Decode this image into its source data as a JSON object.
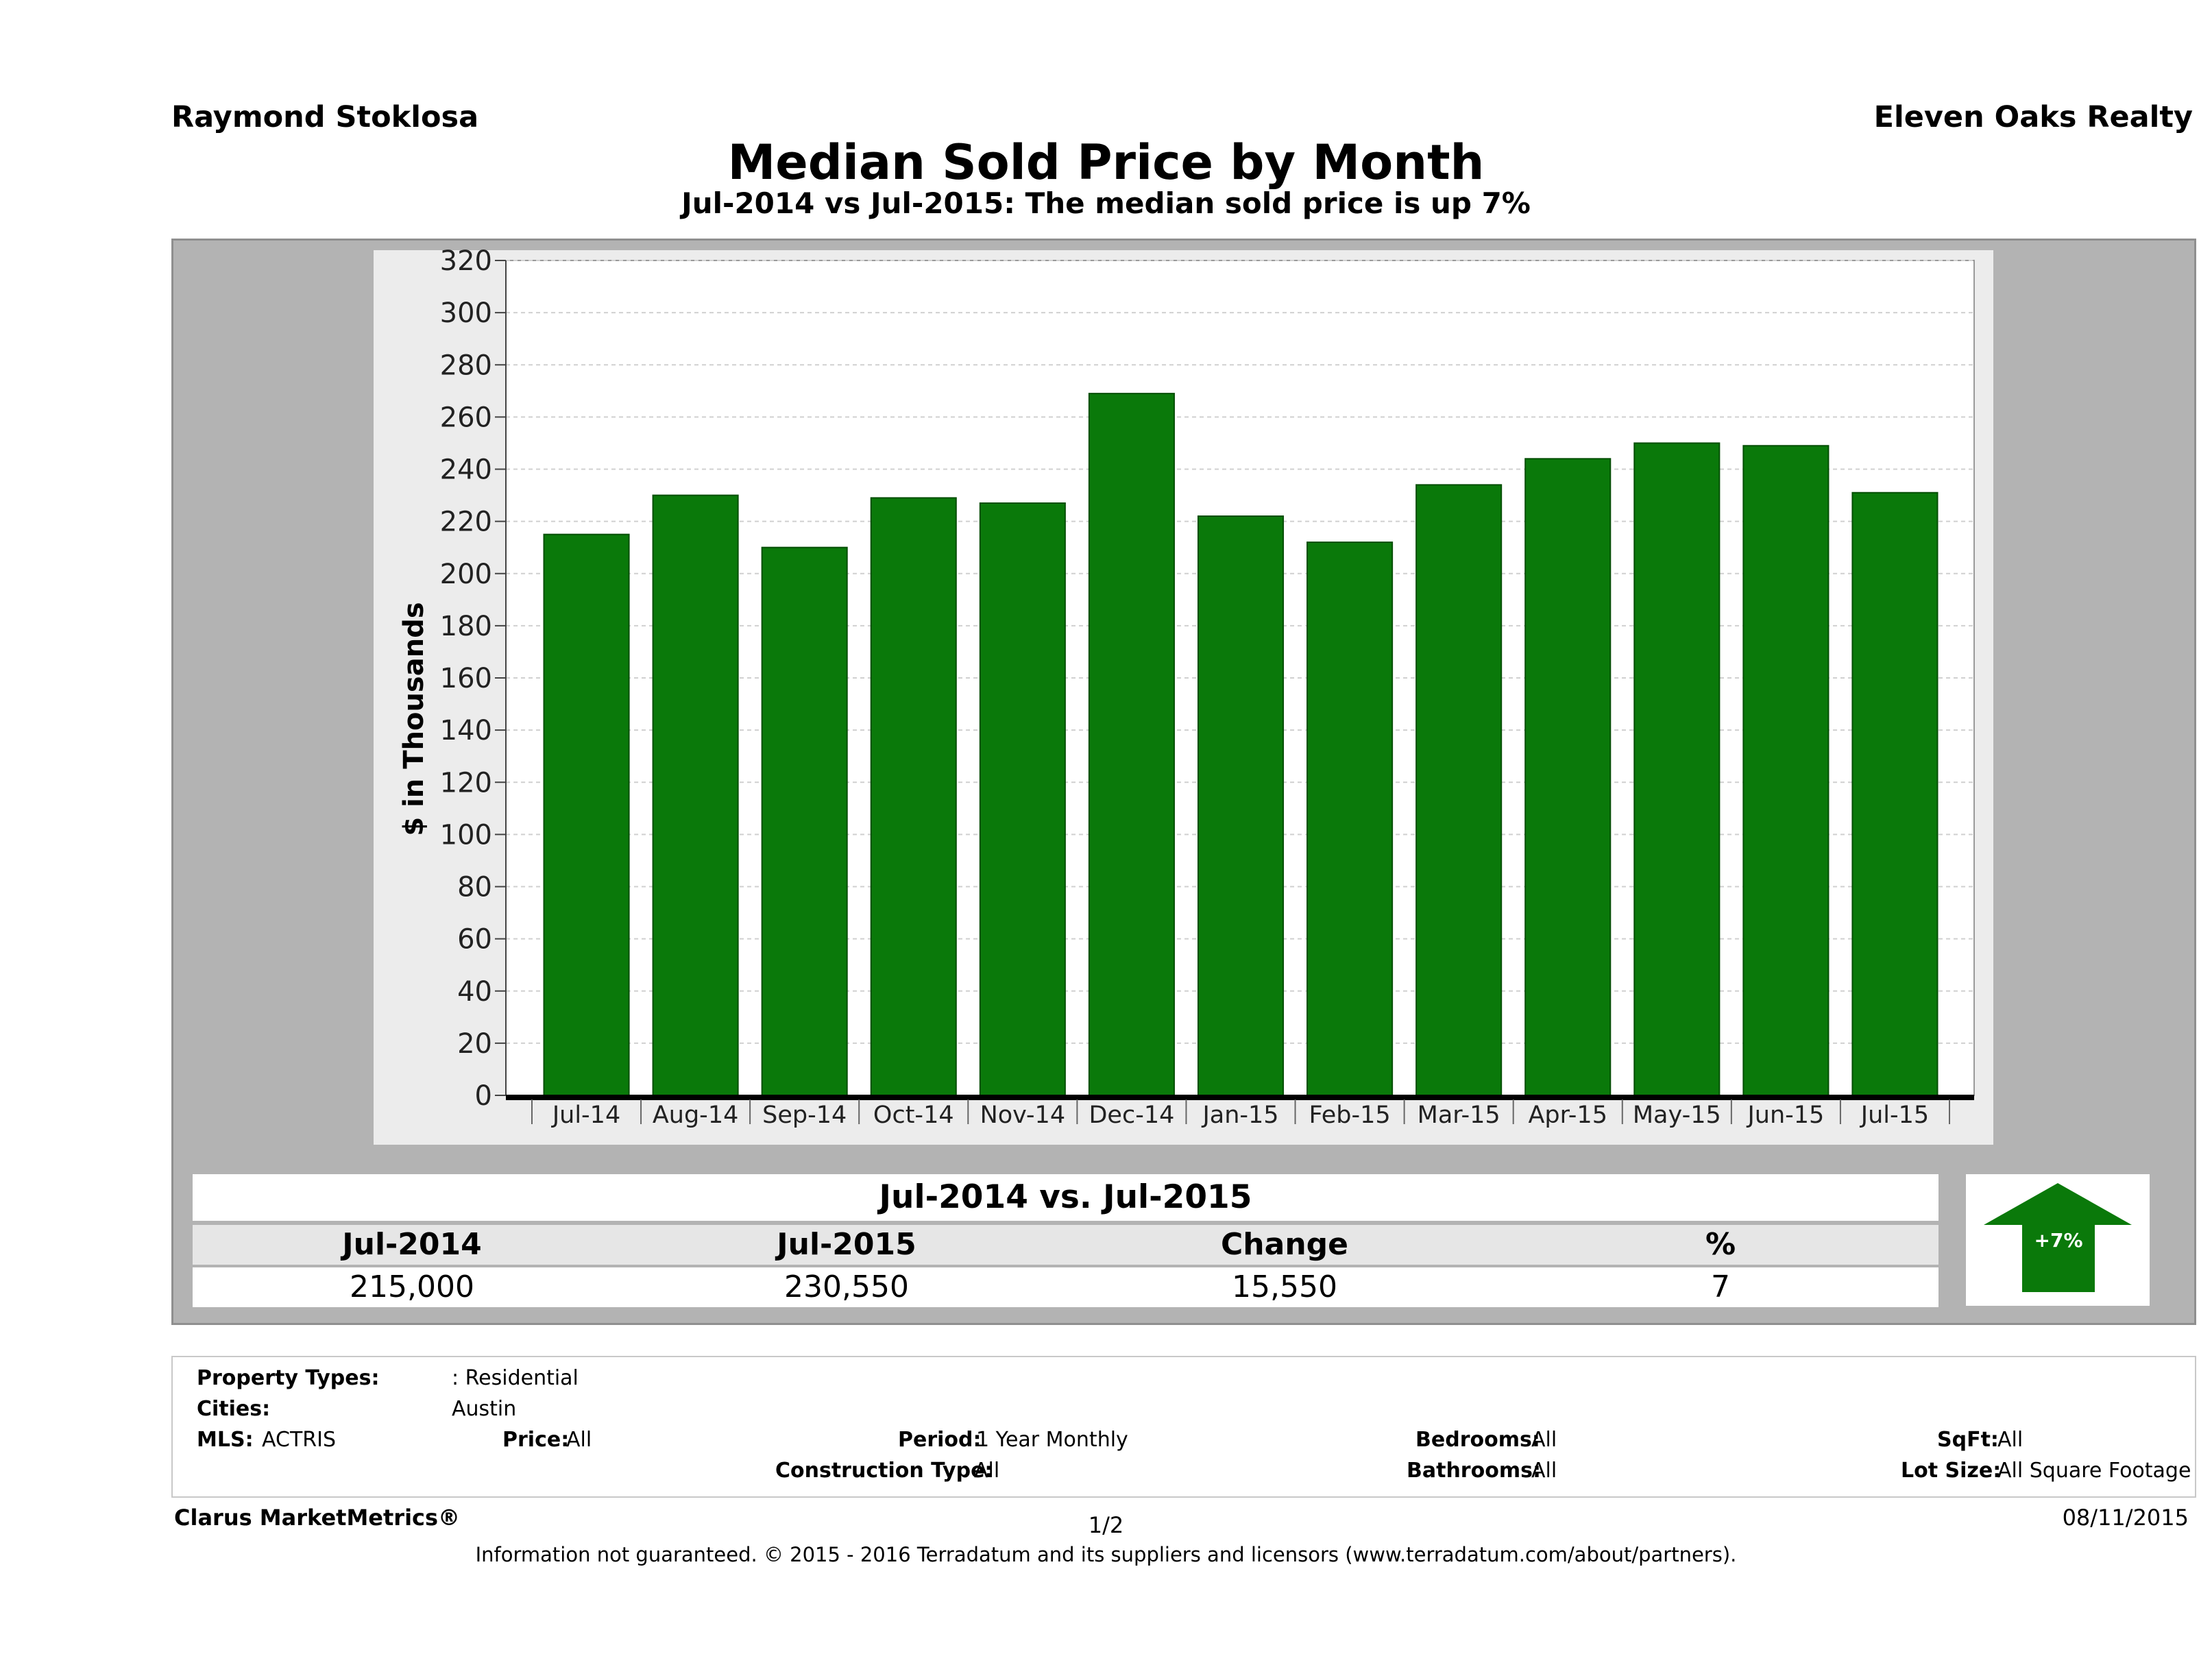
{
  "header": {
    "agent": "Raymond Stoklosa",
    "company": "Eleven Oaks Realty"
  },
  "chart_data": {
    "type": "bar",
    "title": "Median Sold Price by Month",
    "subtitle": "Jul-2014 vs Jul-2015: The median sold price is up 7%",
    "xlabel": "",
    "ylabel": "$ in Thousands",
    "ylim": [
      0,
      320
    ],
    "yticks": [
      0,
      20,
      40,
      60,
      80,
      100,
      120,
      140,
      160,
      180,
      200,
      220,
      240,
      260,
      280,
      300,
      320
    ],
    "categories": [
      "Jul-14",
      "Aug-14",
      "Sep-14",
      "Oct-14",
      "Nov-14",
      "Dec-14",
      "Jan-15",
      "Feb-15",
      "Mar-15",
      "Apr-15",
      "May-15",
      "Jun-15",
      "Jul-15"
    ],
    "values": [
      215,
      230,
      210,
      229,
      227,
      269,
      222,
      212,
      234,
      244,
      250,
      249,
      231
    ],
    "bar_color": "#0a790a",
    "grid": true
  },
  "summary": {
    "heading": "Jul-2014 vs. Jul-2015",
    "col1_label": "Jul-2014",
    "col2_label": "Jul-2015",
    "col3_label": "Change",
    "col4_label": "%",
    "col1_value": "215,000",
    "col2_value": "230,550",
    "col3_value": "15,550",
    "col4_value": "7",
    "arrow_label": "+7%",
    "arrow_color": "#0a790a",
    "arrow_direction": "up"
  },
  "info": {
    "property_types_label": "Property Types:",
    "property_types_value": ": Residential",
    "cities_label": "Cities:",
    "cities_value": "Austin",
    "mls_label": "MLS:",
    "mls_value": "ACTRIS",
    "price_label": "Price:",
    "price_value": "All",
    "period_label": "Period:",
    "period_value": "1 Year Monthly",
    "bedrooms_label": "Bedrooms:",
    "bedrooms_value": "All",
    "sqft_label": "SqFt:",
    "sqft_value": "All",
    "construction_label": "Construction Type:",
    "construction_value": "All",
    "bathrooms_label": "Bathrooms:",
    "bathrooms_value": "All",
    "lot_label": "Lot Size:",
    "lot_value": "All Square Footage"
  },
  "footer": {
    "brand": "Clarus MarketMetrics®",
    "page": "1/2",
    "date": "08/11/2015",
    "disclaimer": "Information not guaranteed. © 2015 - 2016 Terradatum and its suppliers and licensors (www.terradatum.com/about/partners)."
  }
}
